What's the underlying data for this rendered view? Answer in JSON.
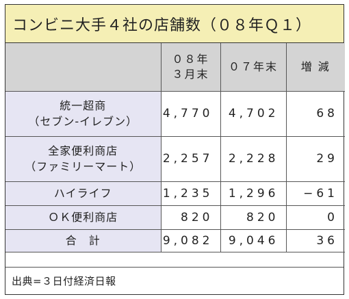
{
  "title": "コンビニ大手４社の店舗数（０８年Ｑ１）",
  "table": {
    "headers": {
      "col_2008_line1": "０８年",
      "col_2008_line2": "３月末",
      "col_2007": "０７年末",
      "col_change": "増 減"
    },
    "rows": [
      {
        "name_line1": "統一超商",
        "name_line2": "（セブン-イレブン）",
        "v2008": "4,770",
        "v2007": "4,702",
        "change": "68"
      },
      {
        "name_line1": "全家便利商店",
        "name_line2": "（ファミリーマート）",
        "v2008": "2,257",
        "v2007": "2,228",
        "change": "29"
      },
      {
        "name_line1": "ハイライフ",
        "v2008": "1,235",
        "v2007": "1,296",
        "change": "−61"
      },
      {
        "name_line1": "ＯＫ便利商店",
        "v2008": "820",
        "v2007": "820",
        "change": "0"
      },
      {
        "name_line1": "合　計",
        "v2008": "9,082",
        "v2007": "9,046",
        "change": "36"
      }
    ]
  },
  "source": "出典=３日付経済日報"
}
